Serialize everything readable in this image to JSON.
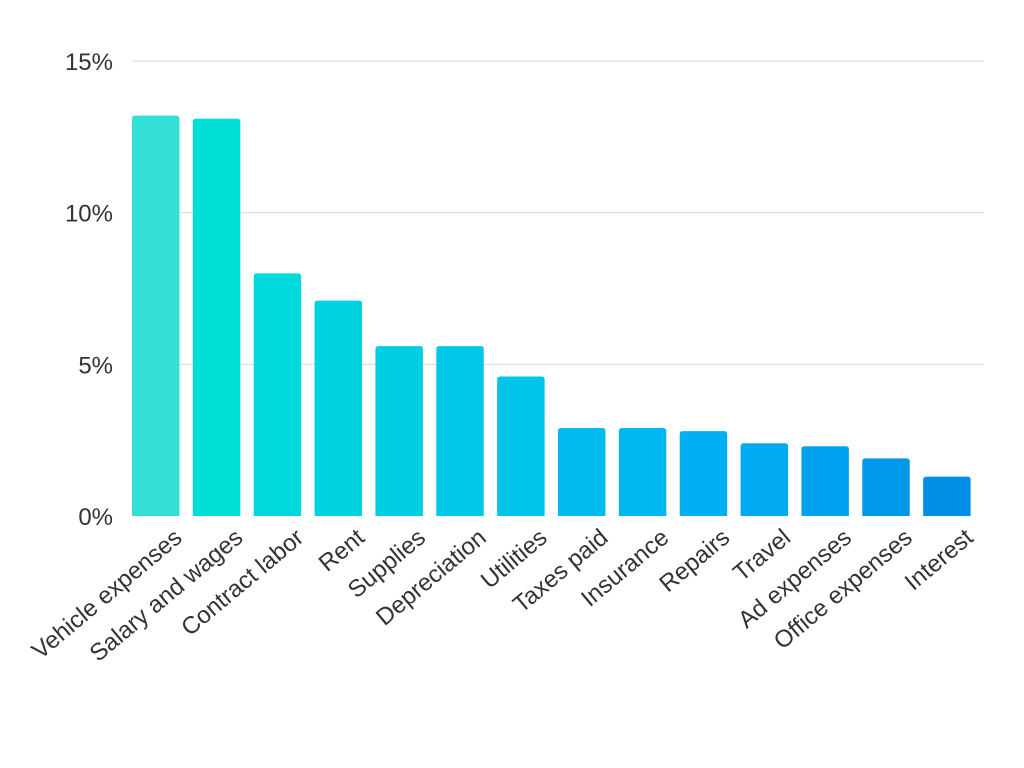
{
  "chart_data": {
    "type": "bar",
    "title": "",
    "xlabel": "",
    "ylabel": "",
    "categories": [
      "Vehicle expenses",
      "Salary and wages",
      "Contract labor",
      "Rent",
      "Supplies",
      "Depreciation",
      "Utilities",
      "Taxes paid",
      "Insurance",
      "Repairs",
      "Travel",
      "Ad expenses",
      "Office expenses",
      "Interest"
    ],
    "values": [
      13.2,
      13.1,
      8.0,
      7.1,
      5.6,
      5.6,
      4.6,
      2.9,
      2.9,
      2.8,
      2.4,
      2.3,
      1.9,
      1.3
    ],
    "ylim": [
      0,
      15
    ],
    "yticks": [
      0,
      5,
      10,
      15
    ],
    "ytick_labels": [
      "0%",
      "5%",
      "10%",
      "15%"
    ],
    "grid": true,
    "legend": "none",
    "colors": [
      "#33e0d6",
      "#00e0d6",
      "#00d8dc",
      "#00d2e0",
      "#00cee2",
      "#00c8e6",
      "#00c4ea",
      "#00bcee",
      "#00b8f0",
      "#00b0f2",
      "#00aaf2",
      "#00a2f0",
      "#0098ea",
      "#0090e6"
    ]
  }
}
